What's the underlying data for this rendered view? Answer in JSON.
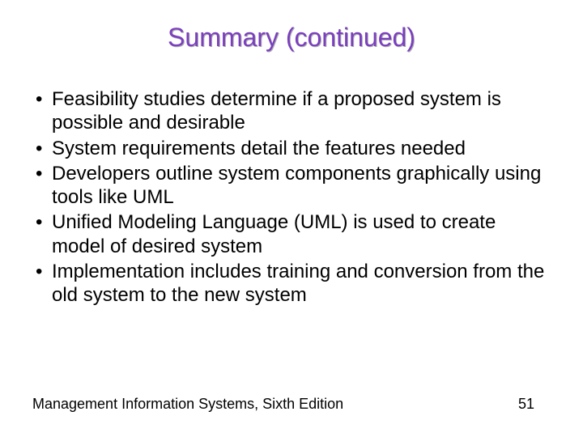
{
  "title": "Summary (continued)",
  "title_color": "#7b3fbf",
  "title_fontsize": 32,
  "bullet_fontsize": 24,
  "bullet_color": "#000000",
  "background_color": "#ffffff",
  "bullets": [
    "Feasibility studies determine if a proposed system is possible and desirable",
    "System requirements detail the features needed",
    "Developers outline system components graphically using tools like UML",
    "Unified Modeling Language (UML) is used to create model of desired system",
    "Implementation includes training and conversion from the old system to the new system"
  ],
  "footer": {
    "left": "Management Information Systems, Sixth Edition",
    "page_number": "51",
    "fontsize": 18
  }
}
